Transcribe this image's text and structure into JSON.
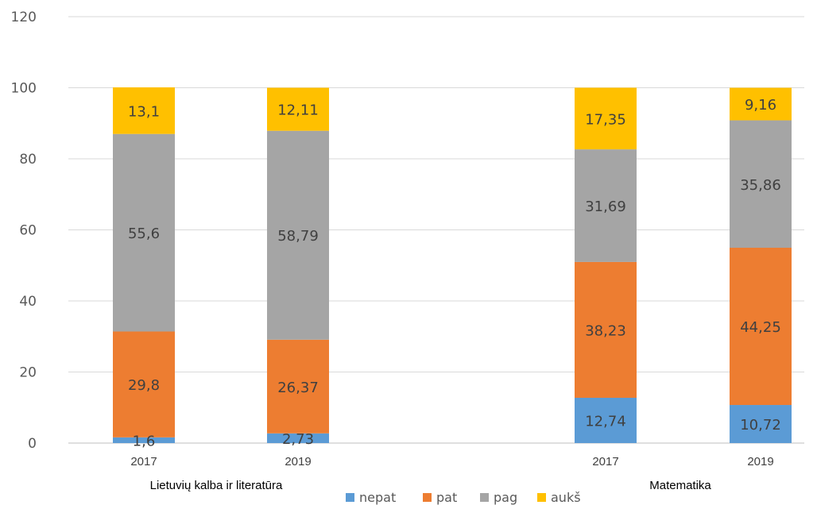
{
  "chart_data": {
    "type": "bar",
    "stacked": true,
    "groups": [
      {
        "name": "Lietuvių kalba ir literatūra",
        "categories": [
          "2017",
          "2019"
        ]
      },
      {
        "name": "Matematika",
        "categories": [
          "2017",
          "2019"
        ]
      }
    ],
    "categories": [
      "2017",
      "2019",
      "2017",
      "2019"
    ],
    "series": [
      {
        "name": "nepat",
        "color": "#5B9BD5",
        "values": [
          1.6,
          2.73,
          12.74,
          10.72
        ],
        "labels": [
          "1,6",
          "2,73",
          "12,74",
          "10,72"
        ]
      },
      {
        "name": "pat",
        "color": "#ED7D31",
        "values": [
          29.8,
          26.37,
          38.23,
          44.25
        ],
        "labels": [
          "29,8",
          "26,37",
          "38,23",
          "44,25"
        ]
      },
      {
        "name": "pag",
        "color": "#A5A5A5",
        "values": [
          55.6,
          58.79,
          31.69,
          35.86
        ],
        "labels": [
          "55,6",
          "58,79",
          "31,69",
          "35,86"
        ]
      },
      {
        "name": "aukš",
        "color": "#FFC000",
        "values": [
          13.1,
          12.11,
          17.35,
          9.16
        ],
        "labels": [
          "13,1",
          "12,11",
          "17,35",
          "9,16"
        ]
      }
    ],
    "ylim": [
      0,
      120
    ],
    "yticks": [
      0,
      20,
      40,
      60,
      80,
      100,
      120
    ],
    "grid": true,
    "legend": "bottom-center",
    "title": "",
    "xlabel": "",
    "ylabel": ""
  }
}
